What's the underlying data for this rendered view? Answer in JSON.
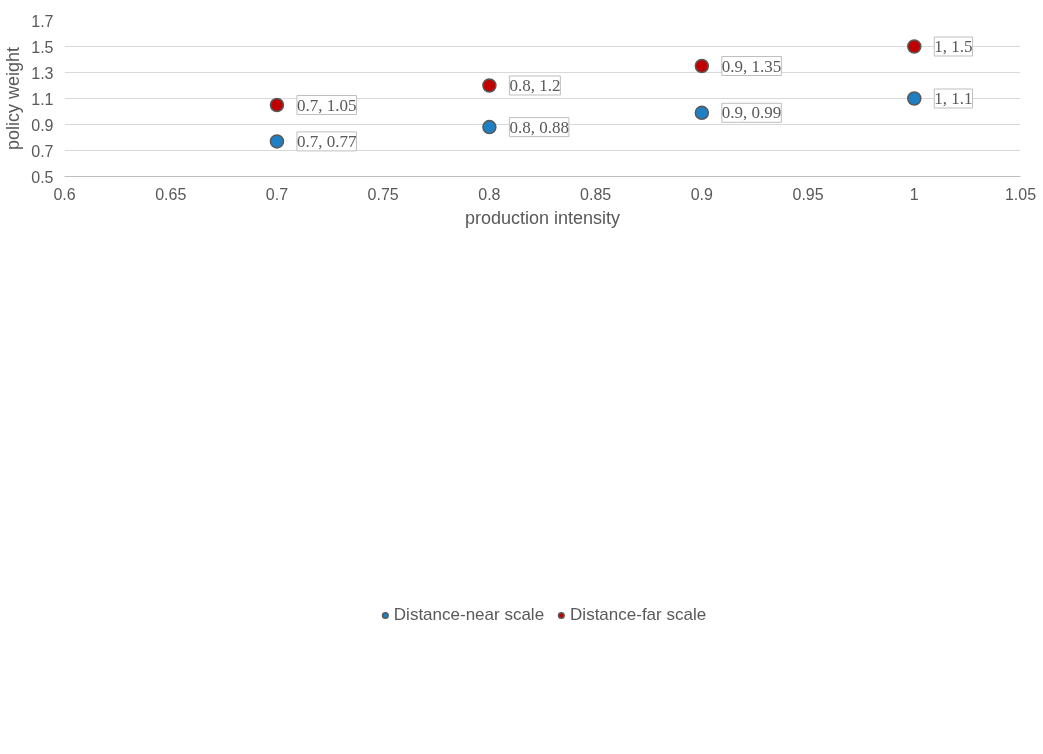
{
  "chart_data": {
    "type": "scatter",
    "xlabel": "production intensity",
    "ylabel": "policy weight",
    "xlim": [
      0.6,
      1.05
    ],
    "xticks": [
      0.6,
      0.65,
      0.7,
      0.75,
      0.8,
      0.85,
      0.9,
      0.95,
      1,
      1.05
    ],
    "ylim": [
      0.5,
      1.7
    ],
    "yticks": [
      0.5,
      0.7,
      0.9,
      1.1,
      1.3,
      1.5,
      1.7
    ],
    "grid": "y",
    "legend": "bottom",
    "marker": "circle",
    "series": [
      {
        "name": "Distance-near scale",
        "color": "#1f7fc4",
        "x": [
          0.7,
          0.8,
          0.9,
          1
        ],
        "values": [
          0.77,
          0.88,
          0.99,
          1.1
        ],
        "value_labels": [
          "0.7, 0.77",
          "0.8, 0.88",
          "0.9, 0.99",
          "1, 1.1"
        ]
      },
      {
        "name": "Distance-far scale",
        "color": "#c00000",
        "x": [
          0.7,
          0.8,
          0.9,
          1
        ],
        "values": [
          1.05,
          1.2,
          1.35,
          1.5
        ],
        "value_labels": [
          "0.7, 1.05",
          "0.8, 1.2",
          "0.9, 1.35",
          "1, 1.5"
        ]
      }
    ]
  }
}
